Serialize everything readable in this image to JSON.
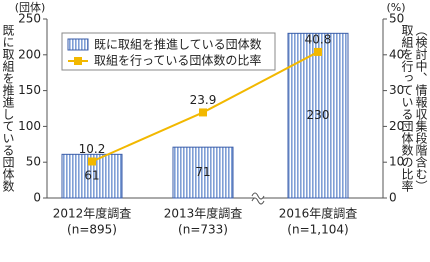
{
  "chart_data": {
    "type": "bar-line",
    "y_unit": "(団体)",
    "y2_unit": "(%)",
    "ylabel": "既に取組を推進している団体数",
    "y2label": [
      "取組を行っている団体数の比率",
      "（検討中、情報収集段階含む）"
    ],
    "categories": [
      "2012年度調査",
      "2013年度調査",
      "2016年度調査"
    ],
    "category_notes": [
      "(n=895)",
      "(n=733)",
      "(n=1,104)"
    ],
    "series": [
      {
        "name": "既に取組を推進している団体数",
        "type": "bar",
        "color": "#7f9fd6",
        "values": [
          61,
          71,
          230
        ]
      },
      {
        "name": "取組を行っている団体数の比率",
        "type": "line",
        "axis": "y2",
        "color": "#f2b800",
        "values": [
          10.2,
          23.9,
          40.8
        ]
      }
    ],
    "ylim": [
      0,
      250
    ],
    "yticks": [
      0,
      50,
      100,
      150,
      200,
      250
    ],
    "y2lim": [
      0,
      50
    ],
    "y2ticks": [
      0,
      10,
      20,
      30,
      40,
      50
    ],
    "legend": "top-left"
  }
}
